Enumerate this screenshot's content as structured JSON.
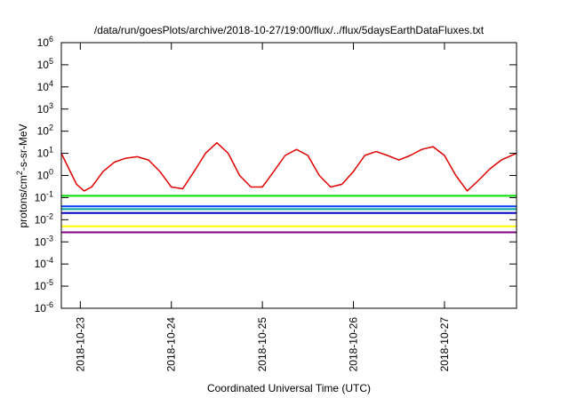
{
  "chart_data": {
    "type": "line",
    "title": "/data/run/goesPlots/archive/2018-10-27/19:00/flux/../flux/5daysEarthDataFluxes.txt",
    "xlabel": "Coordinated Universal Time (UTC)",
    "ylabel": {
      "prefix": "protons/cm",
      "superscript": "2",
      "suffix": "-s-sr-MeV"
    },
    "yscale": "log",
    "ylim": [
      1e-06,
      1000000.0
    ],
    "xlim": [
      "2018-10-22T19:00",
      "2018-10-27T19:00"
    ],
    "grid": false,
    "legend": "none",
    "x_tick_labels": [
      "2018-10-23",
      "2018-10-24",
      "2018-10-25",
      "2018-10-26",
      "2018-10-27"
    ],
    "y_tick_labels": [
      {
        "base": "10",
        "exp": "-6"
      },
      {
        "base": "10",
        "exp": "-5"
      },
      {
        "base": "10",
        "exp": "-4"
      },
      {
        "base": "10",
        "exp": "-3"
      },
      {
        "base": "10",
        "exp": "-2"
      },
      {
        "base": "10",
        "exp": "-1"
      },
      {
        "base": "10",
        "exp": "0"
      },
      {
        "base": "10",
        "exp": "1"
      },
      {
        "base": "10",
        "exp": "2"
      },
      {
        "base": "10",
        "exp": "3"
      },
      {
        "base": "10",
        "exp": "4"
      },
      {
        "base": "10",
        "exp": "5"
      },
      {
        "base": "10",
        "exp": "6"
      }
    ],
    "series": [
      {
        "color": "#e00000",
        "x": [
          "2018-10-22T19:00",
          "2018-10-22T21:00",
          "2018-10-22T23:00",
          "2018-10-23T01:00",
          "2018-10-23T03:00",
          "2018-10-23T06:00",
          "2018-10-23T09:00",
          "2018-10-23T12:00",
          "2018-10-23T15:00",
          "2018-10-23T18:00",
          "2018-10-23T21:00",
          "2018-10-24T00:00",
          "2018-10-24T03:00",
          "2018-10-24T06:00",
          "2018-10-24T09:00",
          "2018-10-24T12:00",
          "2018-10-24T15:00",
          "2018-10-24T18:00",
          "2018-10-24T21:00",
          "2018-10-25T00:00",
          "2018-10-25T03:00",
          "2018-10-25T06:00",
          "2018-10-25T09:00",
          "2018-10-25T12:00",
          "2018-10-25T15:00",
          "2018-10-25T18:00",
          "2018-10-25T21:00",
          "2018-10-26T00:00",
          "2018-10-26T03:00",
          "2018-10-26T06:00",
          "2018-10-26T09:00",
          "2018-10-26T12:00",
          "2018-10-26T15:00",
          "2018-10-26T18:00",
          "2018-10-26T21:00",
          "2018-10-27T00:00",
          "2018-10-27T03:00",
          "2018-10-27T06:00",
          "2018-10-27T09:00",
          "2018-10-27T12:00",
          "2018-10-27T15:00",
          "2018-10-27T19:00"
        ],
        "y": [
          10,
          2,
          0.4,
          0.2,
          0.3,
          1.5,
          4,
          6,
          7,
          5,
          1.5,
          0.3,
          0.25,
          1.5,
          10,
          30,
          10,
          1,
          0.3,
          0.3,
          1.5,
          8,
          15,
          8,
          1,
          0.3,
          0.4,
          1.5,
          8,
          12,
          8,
          5,
          8,
          15,
          20,
          8,
          1,
          0.2,
          0.6,
          2,
          5,
          10
        ]
      },
      {
        "color": "#00e000",
        "x": [
          "2018-10-22T19:00",
          "2018-10-23T19:00",
          "2018-10-24T19:00",
          "2018-10-25T19:00",
          "2018-10-26T19:00",
          "2018-10-27T19:00"
        ],
        "y": [
          0.12,
          0.12,
          0.12,
          0.12,
          0.12,
          0.12
        ]
      },
      {
        "color": "#00a0a0",
        "x": [
          "2018-10-22T19:00",
          "2018-10-23T19:00",
          "2018-10-24T19:00",
          "2018-10-25T19:00",
          "2018-10-26T19:00",
          "2018-10-27T19:00"
        ],
        "y": [
          0.03,
          0.03,
          0.03,
          0.03,
          0.03,
          0.03
        ]
      },
      {
        "color": "#0040ff",
        "x": [
          "2018-10-22T19:00",
          "2018-10-23T19:00",
          "2018-10-24T19:00",
          "2018-10-25T19:00",
          "2018-10-26T19:00",
          "2018-10-27T19:00"
        ],
        "y": [
          0.04,
          0.04,
          0.04,
          0.04,
          0.04,
          0.04
        ]
      },
      {
        "color": "#0000c0",
        "x": [
          "2018-10-22T19:00",
          "2018-10-23T19:00",
          "2018-10-24T19:00",
          "2018-10-25T19:00",
          "2018-10-26T19:00",
          "2018-10-27T19:00"
        ],
        "y": [
          0.02,
          0.02,
          0.02,
          0.02,
          0.02,
          0.02
        ]
      },
      {
        "color": "#ffff00",
        "x": [
          "2018-10-22T19:00",
          "2018-10-23T19:00",
          "2018-10-24T19:00",
          "2018-10-25T19:00",
          "2018-10-26T19:00",
          "2018-10-27T19:00"
        ],
        "y": [
          0.005,
          0.005,
          0.005,
          0.005,
          0.005,
          0.005
        ]
      },
      {
        "color": "#800080",
        "x": [
          "2018-10-22T19:00",
          "2018-10-23T19:00",
          "2018-10-24T19:00",
          "2018-10-25T19:00",
          "2018-10-26T19:00",
          "2018-10-27T19:00"
        ],
        "y": [
          0.0027,
          0.0027,
          0.0027,
          0.0027,
          0.0027,
          0.0027
        ]
      }
    ]
  }
}
